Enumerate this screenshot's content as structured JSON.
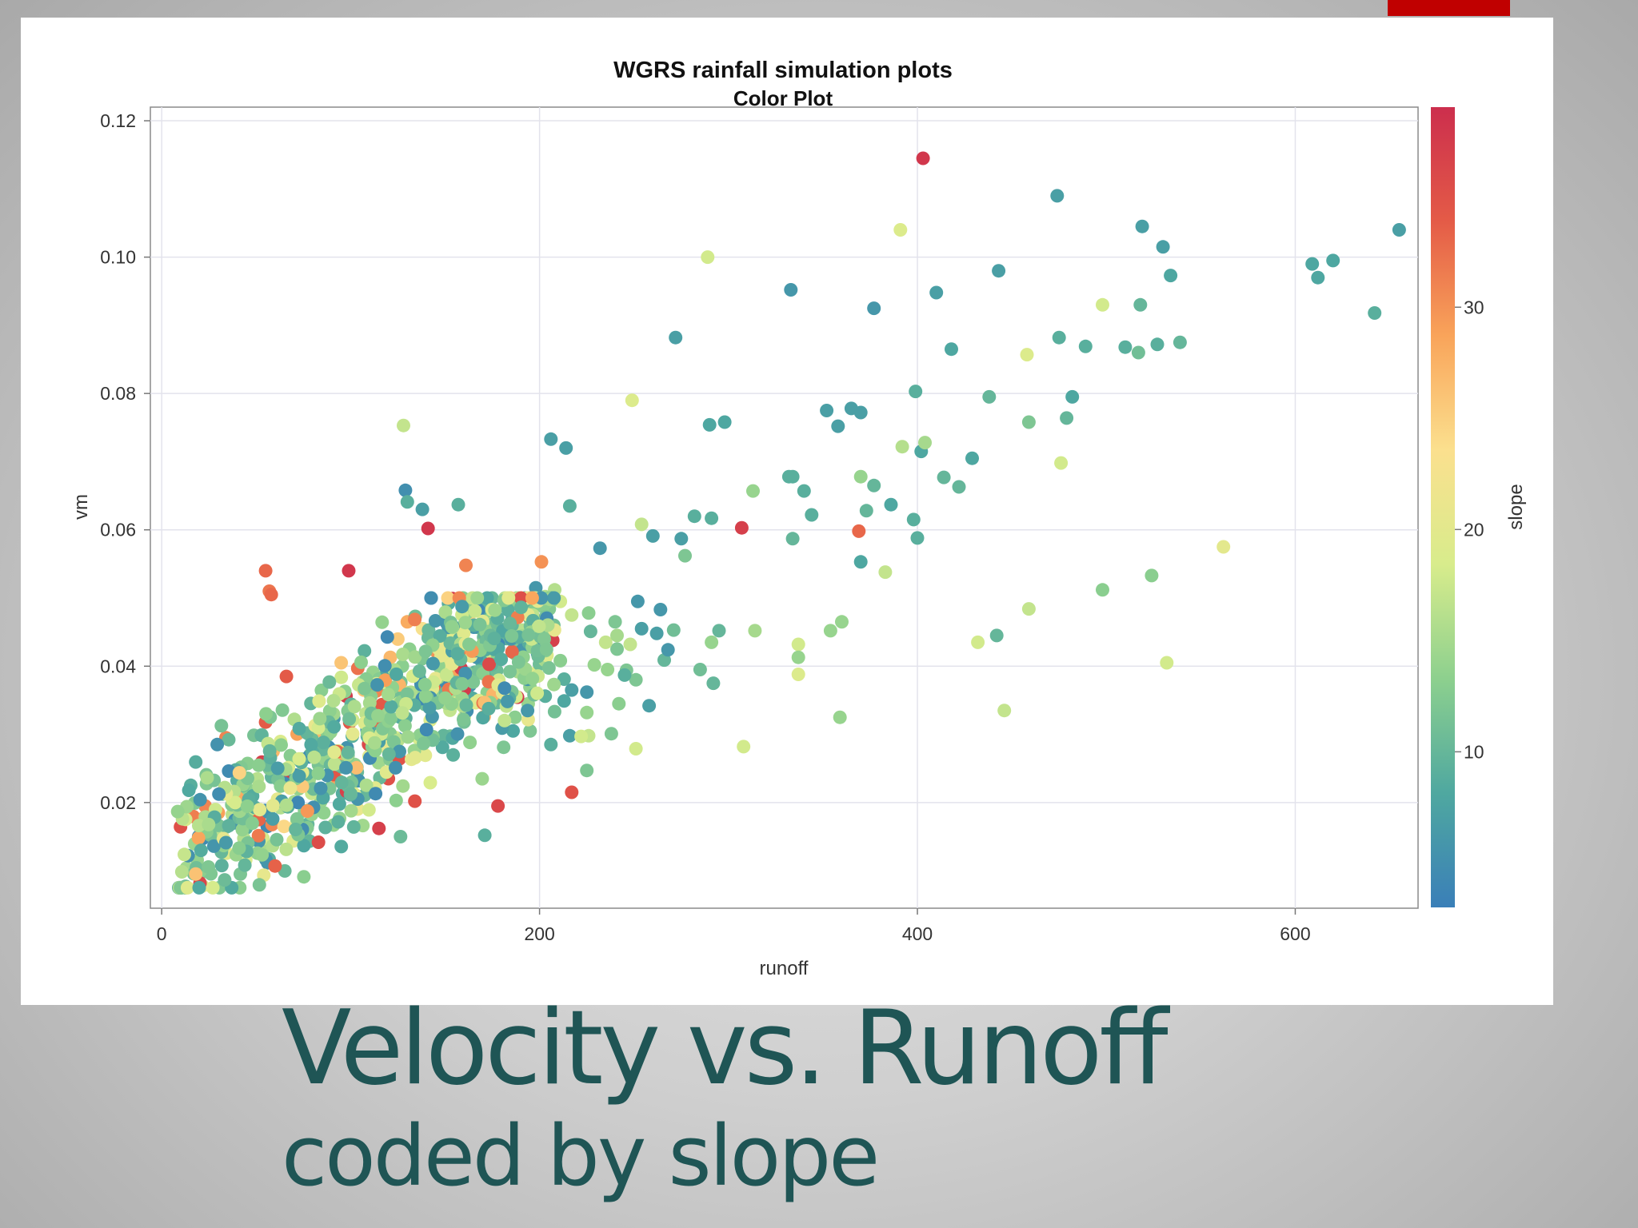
{
  "slide": {
    "caption_line1": "Velocity vs. Runoff",
    "caption_line2": "coded by slope",
    "accent_color": "#c00000",
    "caption_color": "#1f5555"
  },
  "chart_data": {
    "type": "scatter",
    "title": "WGRS rainfall simulation plots",
    "subtitle": "Color Plot",
    "xlabel": "runoff",
    "ylabel": "vm",
    "colorbar_label": "slope",
    "xlim": [
      -6,
      665
    ],
    "ylim": [
      0.0045,
      0.122
    ],
    "clim": [
      3,
      39
    ],
    "x_ticks": [
      0,
      200,
      400,
      600
    ],
    "x_tick_labels": [
      "0",
      "200",
      "400",
      "600"
    ],
    "y_ticks": [
      0.02,
      0.04,
      0.06,
      0.08,
      0.1,
      0.12
    ],
    "y_tick_labels": [
      "0.02",
      "0.04",
      "0.06",
      "0.08",
      "0.10",
      "0.12"
    ],
    "c_ticks": [
      10,
      20,
      30
    ],
    "c_tick_labels": [
      "10",
      "20",
      "30"
    ],
    "colormap": [
      "#3a7fb8",
      "#4fa8a0",
      "#8dd08e",
      "#d8ec8c",
      "#fbe08e",
      "#f9a45a",
      "#e45b47",
      "#cc2e4d"
    ],
    "grid": true,
    "points": [
      [
        403,
        0.1145,
        38
      ],
      [
        474,
        0.109,
        7
      ],
      [
        519,
        0.1045,
        7
      ],
      [
        530,
        0.1015,
        7
      ],
      [
        655,
        0.104,
        7
      ],
      [
        391,
        0.104,
        19
      ],
      [
        289,
        0.1,
        18
      ],
      [
        609,
        0.099,
        8
      ],
      [
        612,
        0.097,
        8
      ],
      [
        620,
        0.0995,
        8
      ],
      [
        534,
        0.0973,
        8
      ],
      [
        443,
        0.098,
        7
      ],
      [
        333,
        0.0952,
        6
      ],
      [
        410,
        0.0948,
        7
      ],
      [
        377,
        0.0925,
        6
      ],
      [
        498,
        0.093,
        18
      ],
      [
        518,
        0.093,
        10
      ],
      [
        642,
        0.0918,
        9
      ],
      [
        272,
        0.0882,
        7
      ],
      [
        475,
        0.0882,
        9
      ],
      [
        489,
        0.0869,
        9
      ],
      [
        418,
        0.0865,
        8
      ],
      [
        458,
        0.0857,
        19
      ],
      [
        510,
        0.0868,
        9
      ],
      [
        517,
        0.086,
        11
      ],
      [
        527,
        0.0872,
        9
      ],
      [
        539,
        0.0875,
        10
      ],
      [
        249,
        0.079,
        19
      ],
      [
        399,
        0.0803,
        9
      ],
      [
        438,
        0.0795,
        10
      ],
      [
        482,
        0.0795,
        8
      ],
      [
        352,
        0.0775,
        7
      ],
      [
        365,
        0.0778,
        7
      ],
      [
        370,
        0.0772,
        7
      ],
      [
        358,
        0.0752,
        7
      ],
      [
        290,
        0.0754,
        8
      ],
      [
        298,
        0.0758,
        8
      ],
      [
        459,
        0.0758,
        12
      ],
      [
        479,
        0.0764,
        10
      ],
      [
        128,
        0.0753,
        17
      ],
      [
        206,
        0.0733,
        7
      ],
      [
        214,
        0.072,
        7
      ],
      [
        392,
        0.0722,
        16
      ],
      [
        402,
        0.0715,
        8
      ],
      [
        404,
        0.0728,
        15
      ],
      [
        429,
        0.0705,
        8
      ],
      [
        476,
        0.0698,
        18
      ],
      [
        414,
        0.0677,
        10
      ],
      [
        422,
        0.0663,
        10
      ],
      [
        332,
        0.0678,
        9
      ],
      [
        334,
        0.0678,
        9
      ],
      [
        340,
        0.0657,
        9
      ],
      [
        377,
        0.0665,
        10
      ],
      [
        370,
        0.0678,
        14
      ],
      [
        313,
        0.0657,
        14
      ],
      [
        129,
        0.0658,
        5
      ],
      [
        130,
        0.0641,
        9
      ],
      [
        216,
        0.0635,
        9
      ],
      [
        157,
        0.0637,
        9
      ],
      [
        138,
        0.063,
        7
      ],
      [
        386,
        0.0637,
        8
      ],
      [
        373,
        0.0628,
        10
      ],
      [
        344,
        0.0622,
        9
      ],
      [
        282,
        0.062,
        9
      ],
      [
        291,
        0.0617,
        9
      ],
      [
        398,
        0.0615,
        9
      ],
      [
        307,
        0.0603,
        37
      ],
      [
        369,
        0.0598,
        33
      ],
      [
        141,
        0.0602,
        38
      ],
      [
        334,
        0.0587,
        10
      ],
      [
        400,
        0.0588,
        9
      ],
      [
        260,
        0.0591,
        7
      ],
      [
        275,
        0.0587,
        7
      ],
      [
        254,
        0.0608,
        17
      ],
      [
        562,
        0.0575,
        20
      ],
      [
        232,
        0.0573,
        6
      ],
      [
        277,
        0.0562,
        12
      ],
      [
        370,
        0.0553,
        8
      ],
      [
        383,
        0.0538,
        17
      ],
      [
        524,
        0.0533,
        13
      ],
      [
        498,
        0.0512,
        13
      ],
      [
        252,
        0.0495,
        6
      ],
      [
        459,
        0.0484,
        17
      ],
      [
        360,
        0.0465,
        14
      ],
      [
        354,
        0.0452,
        14
      ],
      [
        314,
        0.0452,
        15
      ],
      [
        295,
        0.0452,
        10
      ],
      [
        291,
        0.0435,
        14
      ],
      [
        337,
        0.0432,
        18
      ],
      [
        337,
        0.0413,
        14
      ],
      [
        337,
        0.0388,
        19
      ],
      [
        432,
        0.0435,
        18
      ],
      [
        442,
        0.0445,
        10
      ],
      [
        532,
        0.0405,
        18
      ],
      [
        359,
        0.0325,
        14
      ],
      [
        446,
        0.0335,
        17
      ],
      [
        308,
        0.0282,
        18
      ],
      [
        266,
        0.0409,
        10
      ],
      [
        268,
        0.0424,
        6
      ],
      [
        285,
        0.0395,
        11
      ],
      [
        292,
        0.0375,
        10
      ],
      [
        264,
        0.0483,
        6
      ],
      [
        271,
        0.0453,
        11
      ],
      [
        262,
        0.0448,
        7
      ],
      [
        254,
        0.0455,
        7
      ],
      [
        240,
        0.0465,
        12
      ],
      [
        226,
        0.0478,
        13
      ],
      [
        217,
        0.0475,
        17
      ],
      [
        211,
        0.0495,
        18
      ],
      [
        208,
        0.0512,
        16
      ],
      [
        203,
        0.0502,
        16
      ],
      [
        198,
        0.0515,
        6
      ],
      [
        207,
        0.0438,
        37
      ],
      [
        217,
        0.0215,
        35
      ],
      [
        199,
        0.0418,
        7
      ],
      [
        203,
        0.0415,
        7
      ],
      [
        211,
        0.0408,
        13
      ],
      [
        213,
        0.0381,
        9
      ],
      [
        217,
        0.0365,
        7
      ],
      [
        225,
        0.0362,
        6
      ],
      [
        246,
        0.0394,
        12
      ],
      [
        251,
        0.038,
        12
      ],
      [
        225,
        0.0332,
        14
      ],
      [
        213,
        0.0349,
        8
      ],
      [
        216,
        0.0298,
        7
      ],
      [
        226,
        0.0298,
        17
      ],
      [
        225,
        0.0247,
        12
      ],
      [
        238,
        0.0301,
        12
      ],
      [
        251,
        0.0279,
        18
      ],
      [
        258,
        0.0342,
        7
      ],
      [
        242,
        0.0345,
        13
      ],
      [
        245,
        0.0387,
        9
      ],
      [
        241,
        0.0425,
        12
      ],
      [
        236,
        0.0395,
        14
      ],
      [
        229,
        0.0402,
        14
      ],
      [
        222,
        0.0297,
        18
      ],
      [
        227,
        0.0451,
        10
      ],
      [
        235,
        0.0435,
        17
      ],
      [
        241,
        0.0445,
        15
      ],
      [
        248,
        0.0432,
        17
      ],
      [
        206,
        0.0285,
        9
      ],
      [
        181,
        0.0281,
        12
      ],
      [
        186,
        0.0305,
        8
      ],
      [
        195,
        0.0305,
        12
      ],
      [
        203,
        0.0356,
        9
      ],
      [
        194,
        0.0345,
        14
      ],
      [
        187,
        0.0325,
        13
      ],
      [
        178,
        0.0195,
        36
      ],
      [
        171,
        0.0152,
        9
      ],
      [
        99,
        0.054,
        38
      ],
      [
        154,
        0.0499,
        38
      ],
      [
        201,
        0.0553,
        30
      ],
      [
        161,
        0.0548,
        31
      ],
      [
        55,
        0.054,
        33
      ],
      [
        57,
        0.051,
        32
      ],
      [
        58,
        0.0505,
        33
      ],
      [
        130,
        0.0465,
        28
      ],
      [
        66,
        0.0385,
        34
      ],
      [
        34,
        0.0295,
        31
      ],
      [
        55,
        0.0318,
        34
      ],
      [
        23,
        0.0195,
        31
      ],
      [
        30,
        0.0185,
        29
      ],
      [
        48,
        0.0195,
        30
      ],
      [
        42,
        0.0212,
        28
      ],
      [
        120,
        0.0235,
        35
      ],
      [
        115,
        0.0162,
        37
      ],
      [
        134,
        0.0202,
        35
      ],
      [
        121,
        0.0413,
        27
      ],
      [
        59,
        0.0275,
        27
      ],
      [
        95,
        0.0405,
        26
      ],
      [
        82,
        0.0305,
        27
      ],
      [
        107,
        0.0365,
        26
      ],
      [
        138,
        0.0455,
        23
      ],
      [
        163,
        0.0465,
        25
      ]
    ]
  }
}
